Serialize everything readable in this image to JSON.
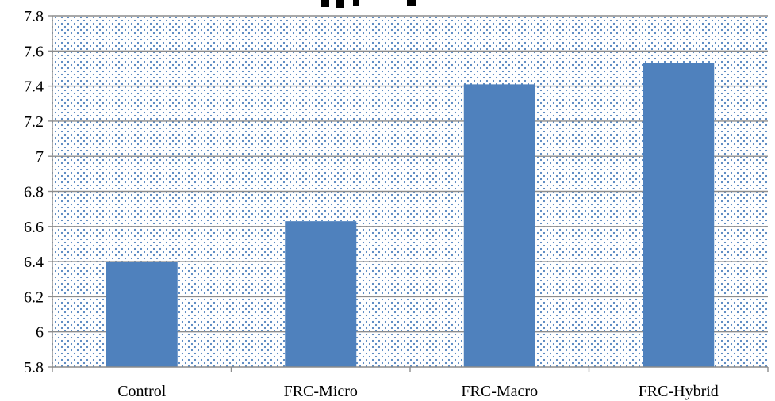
{
  "chart_data": {
    "type": "bar",
    "title": "",
    "xlabel": "",
    "ylabel": "",
    "categories": [
      "Control",
      "FRC-Micro",
      "FRC-Macro",
      "FRC-Hybrid"
    ],
    "values": [
      6.4,
      6.63,
      7.41,
      7.53
    ],
    "ylim": [
      5.8,
      7.8
    ],
    "yticks": [
      "5.8",
      "6",
      "6.2",
      "6.4",
      "6.6",
      "6.8",
      "7",
      "7.2",
      "7.4",
      "7.6",
      "7.8"
    ],
    "grid": true,
    "plot_background": "dotted",
    "bar_color": "#4f81bd",
    "dot_color": "#4f81bd",
    "grid_color": "#8c8c8c"
  }
}
